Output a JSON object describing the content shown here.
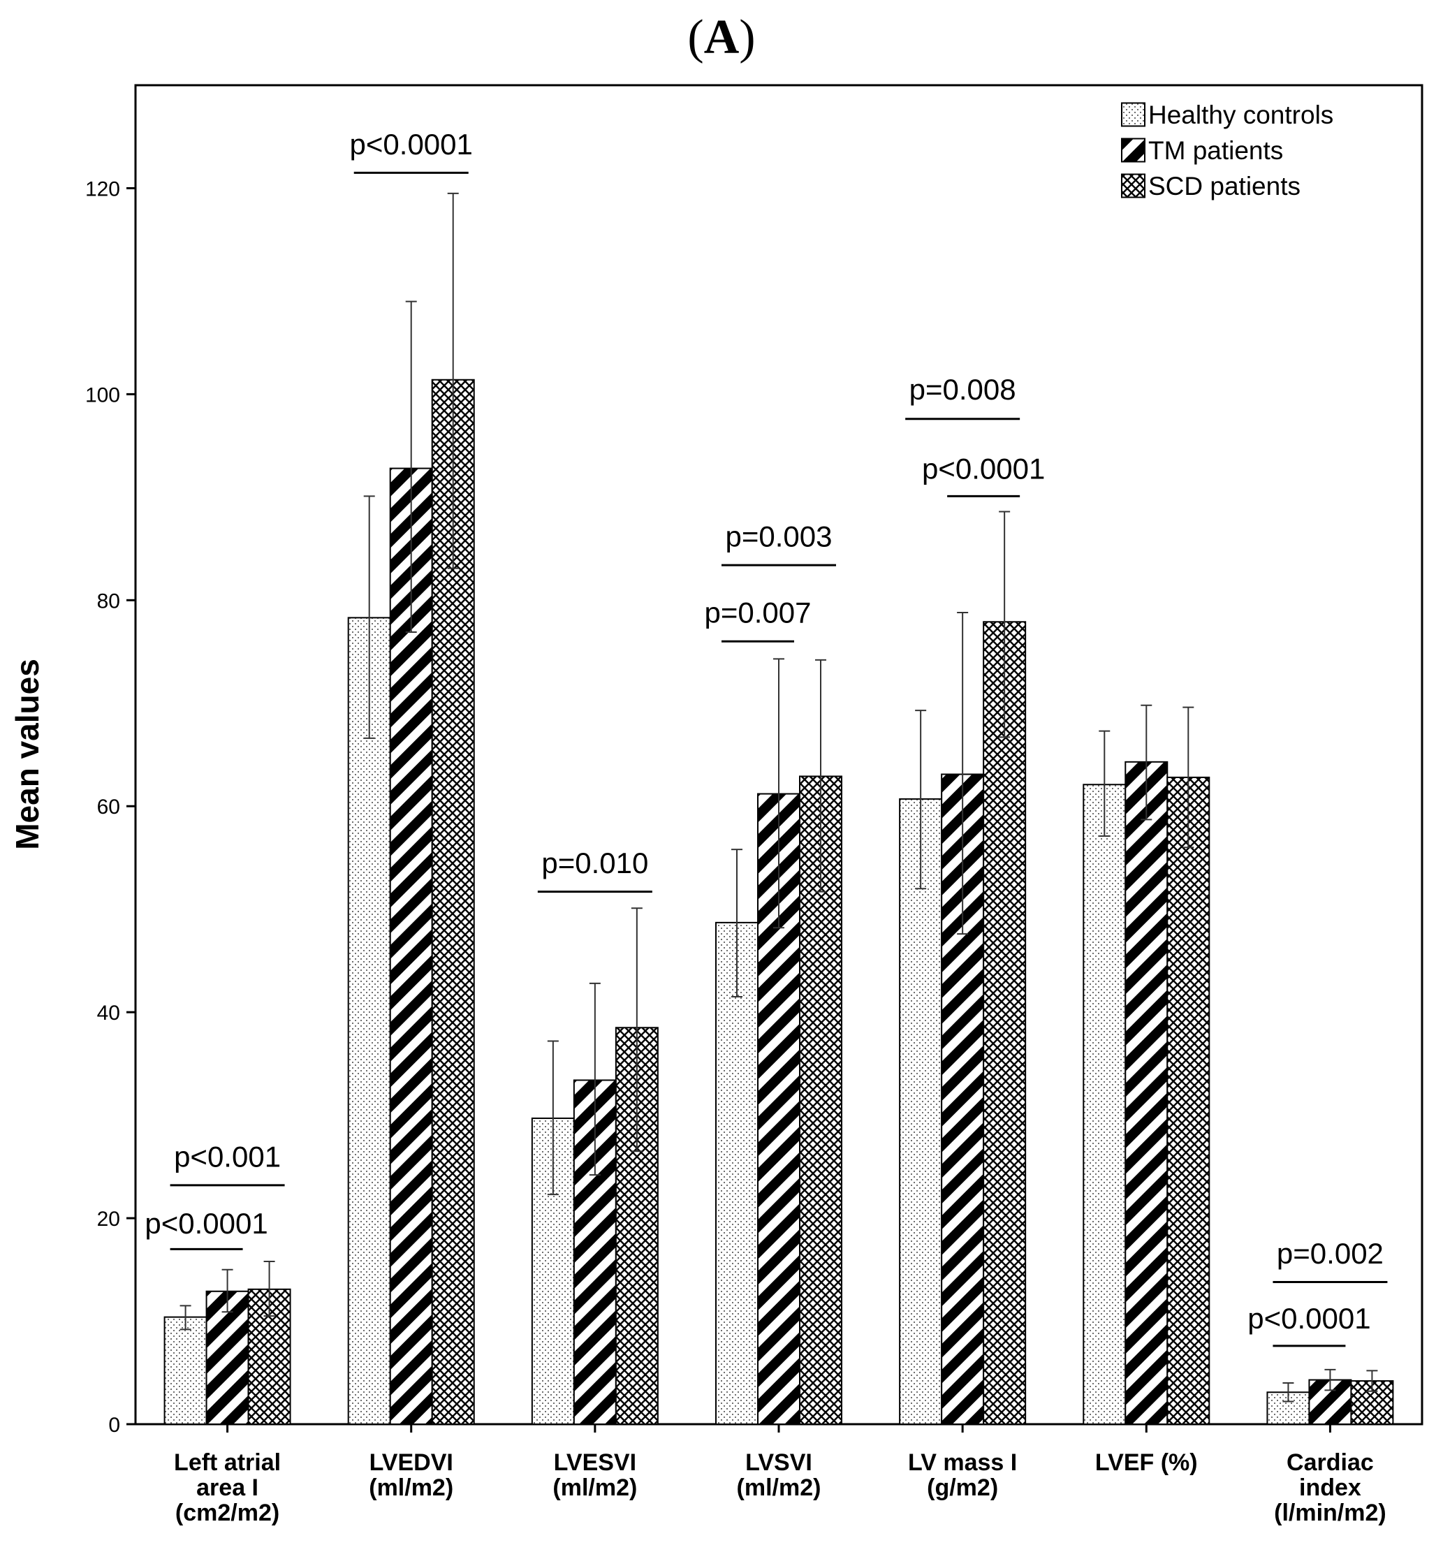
{
  "panel": {
    "open": "(",
    "letter": "A",
    "close": ")"
  },
  "chart_data": {
    "type": "bar",
    "ylabel": "Mean values",
    "ylim": [
      0,
      130
    ],
    "yticks": [
      0,
      20,
      40,
      60,
      80,
      100,
      120
    ],
    "grid": false,
    "legend_position": "top-right",
    "categories": [
      [
        "Left atrial",
        "area I",
        "(cm2/m2)"
      ],
      [
        "LVEDVI",
        "(ml/m2)"
      ],
      [
        "LVESVI",
        "(ml/m2)"
      ],
      [
        "LVSVI",
        "(ml/m2)"
      ],
      [
        "LV mass I",
        "(g/m2)"
      ],
      [
        "LVEF (%)"
      ],
      [
        "Cardiac",
        "index",
        "(l/min/m2)"
      ]
    ],
    "series": [
      {
        "name": "Healthy controls",
        "pattern": "dots",
        "values": [
          10.4,
          78.3,
          29.7,
          48.7,
          60.7,
          62.1,
          3.1
        ],
        "error_upper": [
          11.5,
          90.1,
          37.2,
          55.8,
          69.3,
          67.3,
          4.0
        ],
        "error_lower": [
          9.2,
          66.6,
          22.3,
          41.5,
          52.0,
          57.1,
          2.2
        ]
      },
      {
        "name": "TM patients",
        "pattern": "diagonal",
        "values": [
          12.9,
          92.8,
          33.4,
          61.2,
          63.1,
          64.3,
          4.3
        ],
        "error_upper": [
          15.0,
          109.0,
          42.8,
          74.3,
          78.8,
          69.8,
          5.3
        ],
        "error_lower": [
          10.9,
          76.9,
          24.2,
          48.2,
          47.6,
          58.7,
          3.3
        ]
      },
      {
        "name": "SCD patients",
        "pattern": "crosshatch",
        "values": [
          13.1,
          101.4,
          38.5,
          62.9,
          77.9,
          62.8,
          4.2
        ],
        "error_upper": [
          15.8,
          119.5,
          50.1,
          74.2,
          88.6,
          69.6,
          5.2
        ],
        "error_lower": [
          10.5,
          83.1,
          26.5,
          51.7,
          66.7,
          56.0,
          3.2
        ]
      }
    ],
    "annotations": [
      {
        "text": "p<0.0001",
        "category": 0,
        "from": 0,
        "to": 1,
        "line_y": 17.0,
        "text_y": 18.5
      },
      {
        "text": "p<0.001",
        "category": 0,
        "from": 0,
        "to": 2,
        "line_y": 23.2,
        "text_y": 25.0
      },
      {
        "text": "p<0.0001",
        "category": 1,
        "from": 0,
        "to": 2,
        "line_y": 121.5,
        "text_y": 123.3
      },
      {
        "text": "p=0.010",
        "category": 2,
        "from": 0,
        "to": 2,
        "line_y": 51.7,
        "text_y": 53.5
      },
      {
        "text": "p=0.007",
        "category": 3,
        "from": 0,
        "to": 1,
        "line_y": 76.0,
        "text_y": 77.8
      },
      {
        "text": "p=0.003",
        "category": 3,
        "from": 0,
        "to": 2,
        "line_y": 83.4,
        "text_y": 85.2
      },
      {
        "text": "p=0.008",
        "category": 4,
        "from": 0,
        "to": 2,
        "line_y": 97.6,
        "text_y": 99.5
      },
      {
        "text": "p<0.0001",
        "category": 4,
        "from": 1,
        "to": 2,
        "line_y": 90.1,
        "text_y": 91.8
      },
      {
        "text": "p<0.0001",
        "category": 6,
        "from": 0,
        "to": 1,
        "line_y": 7.6,
        "text_y": 9.3
      },
      {
        "text": "p=0.002",
        "category": 6,
        "from": 0,
        "to": 2,
        "line_y": 13.8,
        "text_y": 15.6
      }
    ]
  }
}
